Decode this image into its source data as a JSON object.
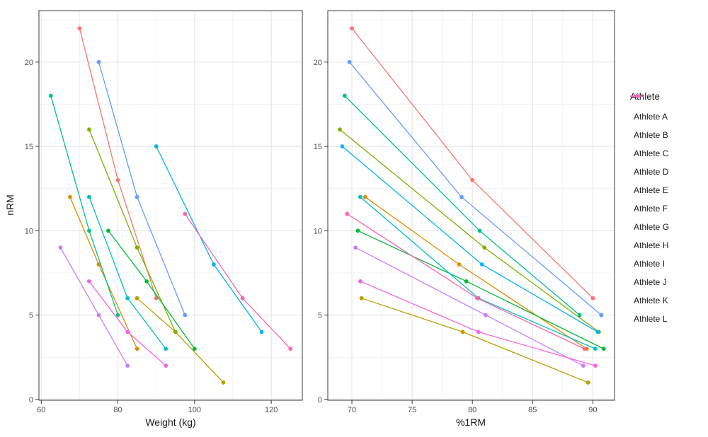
{
  "chart_data": {
    "type": "line",
    "ylabel": "nRM",
    "yticks": [
      0,
      5,
      10,
      15,
      20
    ],
    "yminor": [
      2.5,
      7.5,
      12.5,
      17.5,
      22.5
    ],
    "ylim": [
      -0.05,
      23.05
    ],
    "legend_title": "Athlete",
    "panels": [
      {
        "xlabel": "Weight (kg)",
        "x_key": "weight",
        "xticks": [
          60,
          80,
          100,
          120
        ],
        "xminor": [
          70,
          90,
          110
        ],
        "xlim": [
          59.4,
          128.1
        ]
      },
      {
        "xlabel": "%1RM",
        "x_key": "pct",
        "xticks": [
          70,
          75,
          80,
          85,
          90
        ],
        "xminor": [
          72.5,
          77.5,
          82.5,
          87.5
        ],
        "xlim": [
          68.0,
          91.8
        ]
      }
    ],
    "series": [
      {
        "name": "Athlete A",
        "color": "#F8766D",
        "weight": [
          70,
          80,
          90
        ],
        "pct": [
          70.0,
          80.0,
          90.0
        ],
        "nrm": [
          22,
          13,
          6
        ]
      },
      {
        "name": "Athlete B",
        "color": "#DE8C00",
        "weight": [
          67.5,
          75,
          85
        ],
        "pct": [
          71.1,
          78.9,
          89.5
        ],
        "nrm": [
          12,
          8,
          3
        ]
      },
      {
        "name": "Athlete C",
        "color": "#B79F00",
        "weight": [
          85,
          95,
          107.5
        ],
        "pct": [
          70.8,
          79.2,
          89.6
        ],
        "nrm": [
          6,
          4,
          1
        ]
      },
      {
        "name": "Athlete D",
        "color": "#7CAE00",
        "weight": [
          72.5,
          85,
          95
        ],
        "pct": [
          69.0,
          81.0,
          90.5
        ],
        "nrm": [
          16,
          9,
          4
        ]
      },
      {
        "name": "Athlete E",
        "color": "#00BA38",
        "weight": [
          77.5,
          87.5,
          100
        ],
        "pct": [
          70.5,
          79.5,
          90.9
        ],
        "nrm": [
          10,
          7,
          3
        ]
      },
      {
        "name": "Athlete F",
        "color": "#00C08B",
        "weight": [
          62.5,
          72.5,
          80
        ],
        "pct": [
          69.4,
          80.6,
          88.9
        ],
        "nrm": [
          18,
          10,
          5
        ]
      },
      {
        "name": "Athlete G",
        "color": "#00BFC4",
        "weight": [
          72.5,
          82.5,
          92.5
        ],
        "pct": [
          70.7,
          80.5,
          90.2
        ],
        "nrm": [
          12,
          6,
          3
        ]
      },
      {
        "name": "Athlete H",
        "color": "#00B4F0",
        "weight": [
          90,
          105,
          117.5
        ],
        "pct": [
          69.2,
          80.8,
          90.4
        ],
        "nrm": [
          15,
          8,
          4
        ]
      },
      {
        "name": "Athlete I",
        "color": "#619CFF",
        "weight": [
          75,
          85,
          97.5
        ],
        "pct": [
          69.8,
          79.1,
          90.7
        ],
        "nrm": [
          20,
          12,
          5
        ]
      },
      {
        "name": "Athlete J",
        "color": "#C77CFF",
        "weight": [
          65,
          75,
          82.5
        ],
        "pct": [
          70.3,
          81.1,
          89.2
        ],
        "nrm": [
          9,
          5,
          2
        ]
      },
      {
        "name": "Athlete K",
        "color": "#F564E3",
        "weight": [
          72.5,
          82.5,
          92.5
        ],
        "pct": [
          70.7,
          80.5,
          90.2
        ],
        "nrm": [
          7,
          4,
          2
        ]
      },
      {
        "name": "Athlete L",
        "color": "#FF64B0",
        "weight": [
          97.5,
          112.5,
          125
        ],
        "pct": [
          69.6,
          80.4,
          89.3
        ],
        "nrm": [
          11,
          6,
          3
        ]
      }
    ]
  }
}
